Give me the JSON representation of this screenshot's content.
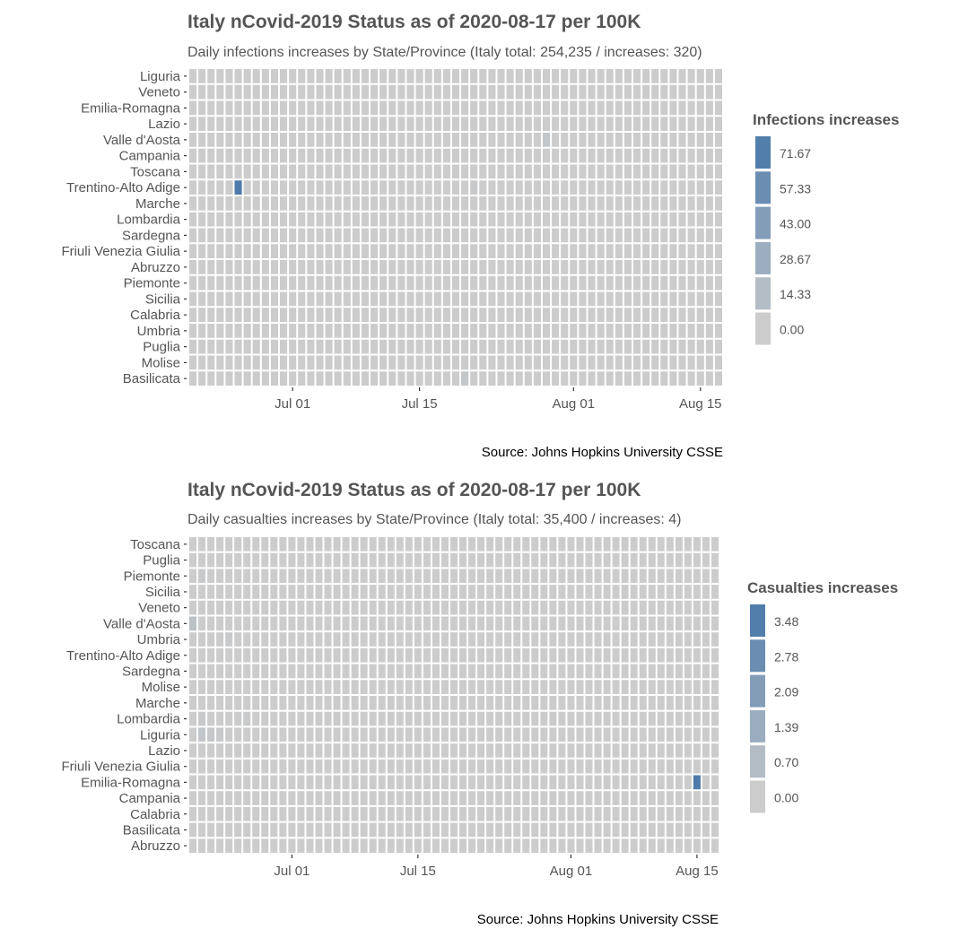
{
  "chart_data": [
    {
      "type": "heatmap",
      "title": "Italy nCovid-2019 Status as of 2020-08-17 per 100K",
      "subtitle": "Daily infections increases by State/Province (Italy total: 254,235 / increases: 320)",
      "caption": "Source: Johns Hopkins University CSSE",
      "x_start": "2020-06-20",
      "x_end": "2020-08-17",
      "x_ticks": [
        "Jul 01",
        "Jul 15",
        "Aug 01",
        "Aug 15"
      ],
      "x_tick_dates": [
        "2020-07-01",
        "2020-07-15",
        "2020-08-01",
        "2020-08-15"
      ],
      "rows": [
        "Liguria",
        "Veneto",
        "Emilia-Romagna",
        "Lazio",
        "Valle d'Aosta",
        "Campania",
        "Toscana",
        "Trentino-Alto Adige",
        "Marche",
        "Lombardia",
        "Sardegna",
        "Friuli Venezia Giulia",
        "Abruzzo",
        "Piemonte",
        "Sicilia",
        "Calabria",
        "Umbria",
        "Puglia",
        "Molise",
        "Basilicata"
      ],
      "legend_title": "Infections increases",
      "legend_breaks": [
        "71.67",
        "57.33",
        "43.00",
        "28.67",
        "14.33",
        "0.00"
      ],
      "value_max": 86,
      "default_value": 0,
      "highlights": [
        {
          "row": "Trentino-Alto Adige",
          "date": "2020-06-25",
          "value": 75
        },
        {
          "row": "Valle d'Aosta",
          "date": "2020-07-29",
          "value": 5
        },
        {
          "row": "Trentino-Alto Adige",
          "date": "2020-07-21",
          "value": 3
        },
        {
          "row": "Basilicata",
          "date": "2020-07-20",
          "value": 5
        }
      ],
      "colors": {
        "low": "#cccccc",
        "high": "#3a6ea5"
      }
    },
    {
      "type": "heatmap",
      "title": "Italy nCovid-2019 Status as of 2020-08-17 per 100K",
      "subtitle": "Daily casualties increases by State/Province (Italy total: 35,400 / increases: 4)",
      "caption": "Source: Johns Hopkins University CSSE",
      "x_start": "2020-06-20",
      "x_end": "2020-08-17",
      "x_ticks": [
        "Jul 01",
        "Jul 15",
        "Aug 01",
        "Aug 15"
      ],
      "x_tick_dates": [
        "2020-07-01",
        "2020-07-15",
        "2020-08-01",
        "2020-08-15"
      ],
      "rows": [
        "Toscana",
        "Puglia",
        "Piemonte",
        "Sicilia",
        "Veneto",
        "Valle d'Aosta",
        "Umbria",
        "Trentino-Alto Adige",
        "Sardegna",
        "Molise",
        "Marche",
        "Lombardia",
        "Liguria",
        "Lazio",
        "Friuli Venezia Giulia",
        "Emilia-Romagna",
        "Campania",
        "Calabria",
        "Basilicata",
        "Abruzzo"
      ],
      "legend_title": "Casualties increases",
      "legend_breaks": [
        "3.48",
        "2.78",
        "2.09",
        "1.39",
        "0.70",
        "0.00"
      ],
      "value_max": 4.17,
      "default_value": 0,
      "highlights": [
        {
          "row": "Emilia-Romagna",
          "date": "2020-08-15",
          "value": 3.6
        },
        {
          "row": "Valle d'Aosta",
          "date": "2020-06-20",
          "value": 0.5
        },
        {
          "row": "Liguria",
          "date": "2020-06-21",
          "value": 0.25
        },
        {
          "row": "Liguria",
          "date": "2020-06-22",
          "value": 0.2
        },
        {
          "row": "Liguria",
          "date": "2020-06-23",
          "value": 0.15
        },
        {
          "row": "Piemonte",
          "date": "2020-06-21",
          "value": 0.15
        },
        {
          "row": "Lombardia",
          "date": "2020-06-21",
          "value": 0.12
        },
        {
          "row": "Lombardia",
          "date": "2020-06-26",
          "value": 0.1
        },
        {
          "row": "Umbria",
          "date": "2020-06-24",
          "value": 0.1
        }
      ],
      "colors": {
        "low": "#cccccc",
        "high": "#3a6ea5"
      }
    }
  ]
}
